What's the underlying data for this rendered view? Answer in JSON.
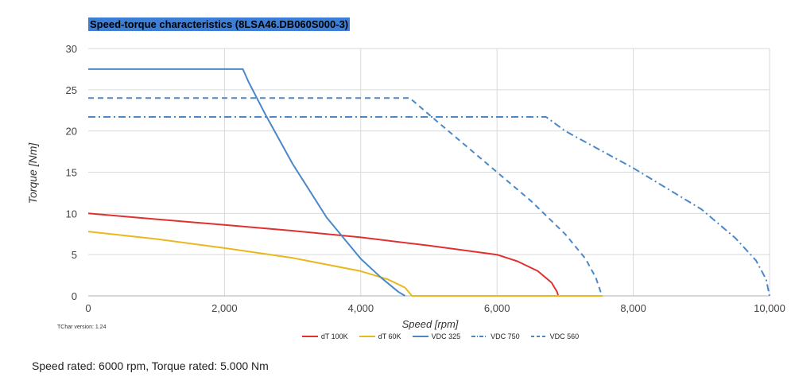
{
  "chart_data": {
    "type": "line",
    "title": "Speed-torque characteristics (8LSA46.DB060S000-3)",
    "xlabel": "Speed [rpm]",
    "ylabel": "Torque [Nm]",
    "xlim": [
      0,
      10000
    ],
    "ylim": [
      0,
      30
    ],
    "xticks": [
      0,
      2000,
      4000,
      6000,
      8000,
      10000
    ],
    "xtick_labels": [
      "0",
      "2,000",
      "4,000",
      "6,000",
      "8,000",
      "10,000"
    ],
    "yticks": [
      0,
      5,
      10,
      15,
      20,
      25,
      30
    ],
    "ytick_labels": [
      "0",
      "5",
      "10",
      "15",
      "20",
      "25",
      "30"
    ],
    "grid": true,
    "legend_position": "bottom",
    "series": [
      {
        "name": "dT 100K",
        "color": "#e03030",
        "style": "solid",
        "x": [
          0,
          1000,
          2000,
          3000,
          4000,
          5000,
          6000,
          6300,
          6600,
          6800,
          6880,
          6900
        ],
        "y": [
          10.0,
          9.3,
          8.6,
          7.9,
          7.1,
          6.1,
          5.0,
          4.2,
          3.0,
          1.6,
          0.5,
          0
        ]
      },
      {
        "name": "dT 60K",
        "color": "#e8b820",
        "style": "solid",
        "x": [
          0,
          1000,
          2000,
          3000,
          4000,
          4400,
          4650,
          4730,
          4750,
          7550
        ],
        "y": [
          7.8,
          6.9,
          5.8,
          4.6,
          3.0,
          2.0,
          1.0,
          0.2,
          0,
          0
        ]
      },
      {
        "name": "VDC 325",
        "color": "#4a88c8",
        "style": "solid",
        "x": [
          0,
          2270,
          2350,
          2600,
          3000,
          3500,
          4000,
          4300,
          4550,
          4650
        ],
        "y": [
          27.5,
          27.5,
          26.0,
          22.0,
          16.0,
          9.5,
          4.5,
          2.2,
          0.5,
          0
        ]
      },
      {
        "name": "VDC 750",
        "color": "#4a88c8",
        "style": "dashdot",
        "x": [
          0,
          6720,
          7000,
          8000,
          9000,
          9500,
          9800,
          9950,
          10000
        ],
        "y": [
          21.7,
          21.7,
          20.0,
          15.5,
          10.5,
          7.0,
          4.3,
          2.0,
          0
        ]
      },
      {
        "name": "VDC 560",
        "color": "#4a88c8",
        "style": "dashed",
        "x": [
          0,
          4720,
          5000,
          6000,
          6500,
          7000,
          7300,
          7450,
          7520,
          7540
        ],
        "y": [
          24.0,
          24.0,
          22.0,
          15.0,
          11.5,
          7.5,
          4.5,
          2.2,
          0.5,
          0
        ]
      }
    ]
  },
  "tchar_version": "TChar version: 1.24",
  "footer_text": "Speed rated: 6000 rpm, Torque rated: 5.000 Nm"
}
